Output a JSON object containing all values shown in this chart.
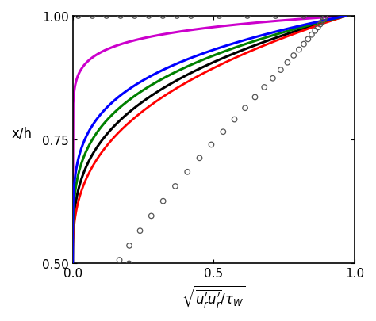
{
  "xlabel": "$\\sqrt{\\overline{u_r^{\\prime}u_r^{\\prime}}/\\tau_W}$",
  "ylabel": "x/h",
  "xlim": [
    0.0,
    1.0
  ],
  "ylim": [
    0.5,
    1.0
  ],
  "xticks": [
    0.0,
    0.5,
    1.0
  ],
  "yticks": [
    0.5,
    0.75,
    1.0
  ],
  "background_color": "#ffffff",
  "purple_params": {
    "scale": 0.97,
    "power": 0.07
  },
  "blue_params": {
    "scale": 0.97,
    "power": 4.5
  },
  "green_params": {
    "scale": 0.97,
    "power": 3.8
  },
  "black_params": {
    "scale": 0.97,
    "power": 3.2
  },
  "red_params": {
    "scale": 0.97,
    "power": 2.8
  },
  "circle_xh": [
    1.0,
    1.0,
    1.0,
    1.0,
    1.0,
    1.0,
    1.0,
    1.0,
    1.0,
    1.0,
    1.0,
    1.0,
    1.0,
    0.997,
    0.993,
    0.988,
    0.983,
    0.977,
    0.97,
    0.962,
    0.953,
    0.943,
    0.932,
    0.92,
    0.906,
    0.891,
    0.874,
    0.856,
    0.836,
    0.814,
    0.791,
    0.766,
    0.74,
    0.713,
    0.685,
    0.656,
    0.626,
    0.596,
    0.566,
    0.536,
    0.507,
    0.5
  ],
  "circle_tke": [
    0.02,
    0.07,
    0.12,
    0.17,
    0.22,
    0.27,
    0.32,
    0.37,
    0.42,
    0.52,
    0.62,
    0.72,
    0.82,
    0.895,
    0.89,
    0.885,
    0.878,
    0.87,
    0.86,
    0.848,
    0.835,
    0.82,
    0.803,
    0.784,
    0.762,
    0.738,
    0.71,
    0.68,
    0.647,
    0.612,
    0.574,
    0.534,
    0.492,
    0.45,
    0.407,
    0.364,
    0.321,
    0.279,
    0.239,
    0.201,
    0.166,
    0.2
  ]
}
